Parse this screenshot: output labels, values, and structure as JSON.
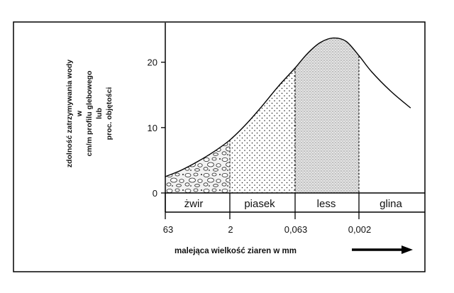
{
  "chart_data": {
    "type": "area",
    "xlabel": "malejąca wielkość ziaren w mm",
    "ylabel_lines": [
      "zdolność zatrzymywania wody",
      "w",
      "cm/m profilu glebowego",
      "lub",
      "proc. objętości"
    ],
    "yticks": [
      0,
      10,
      20
    ],
    "ylim": [
      0,
      25
    ],
    "x_ticks": [
      "63",
      "2",
      "0,063",
      "0,002"
    ],
    "bands": [
      {
        "name": "żwir",
        "from": "63",
        "to": "2"
      },
      {
        "name": "piasek",
        "from": "2",
        "to": "0,063"
      },
      {
        "name": "less",
        "from": "0,063",
        "to": "0,002"
      },
      {
        "name": "glina",
        "from": "0,002",
        "to": ""
      }
    ],
    "series": [
      {
        "x": [
          0,
          0.25,
          0.5,
          0.75,
          1.0,
          1.25,
          1.5,
          1.75,
          2.0,
          2.2,
          2.4,
          2.6,
          2.8,
          3.0,
          3.2,
          3.5,
          3.8
        ],
        "values": [
          2.5,
          3.5,
          4.8,
          6.3,
          8.1,
          10.5,
          13.3,
          16.3,
          19.0,
          21.3,
          23.0,
          23.7,
          23.2,
          21.0,
          18.5,
          15.5,
          13.0
        ]
      }
    ],
    "grid": false,
    "legend": "none"
  }
}
